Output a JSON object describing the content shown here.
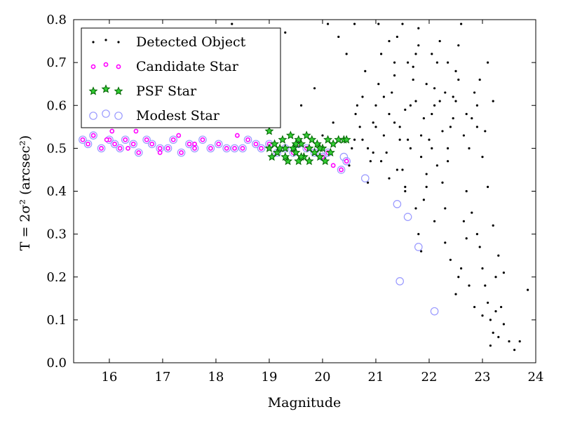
{
  "chart_data": {
    "type": "scatter",
    "xlabel": "Magnitude",
    "ylabel": "T = 2σ² (arcsec²)",
    "xlim": [
      15.33,
      24.0
    ],
    "ylim": [
      0.0,
      0.8
    ],
    "xticks": [
      "16",
      "17",
      "18",
      "19",
      "20",
      "21",
      "22",
      "23",
      "24"
    ],
    "yticks": [
      "0.0",
      "0.1",
      "0.2",
      "0.3",
      "0.4",
      "0.5",
      "0.6",
      "0.7",
      "0.8"
    ],
    "legend_position": "top-left",
    "colors": {
      "detected": "#000000",
      "candidate": "#ff00ff",
      "psf_fill": "#33cc33",
      "psf_edge": "#006400",
      "modest": "#9999ff"
    },
    "series": [
      {
        "name": "Detected Object",
        "marker": "dot",
        "points": [
          [
            20.5,
            0.46
          ],
          [
            20.55,
            0.5
          ],
          [
            20.6,
            0.52
          ],
          [
            20.62,
            0.58
          ],
          [
            20.7,
            0.55
          ],
          [
            20.75,
            0.62
          ],
          [
            20.8,
            0.68
          ],
          [
            20.85,
            0.5
          ],
          [
            20.9,
            0.47
          ],
          [
            20.95,
            0.56
          ],
          [
            21.0,
            0.6
          ],
          [
            21.05,
            0.65
          ],
          [
            21.1,
            0.72
          ],
          [
            21.15,
            0.53
          ],
          [
            21.2,
            0.49
          ],
          [
            21.25,
            0.58
          ],
          [
            21.3,
            0.63
          ],
          [
            21.35,
            0.7
          ],
          [
            21.4,
            0.76
          ],
          [
            21.45,
            0.55
          ],
          [
            21.5,
            0.45
          ],
          [
            21.55,
            0.41
          ],
          [
            21.6,
            0.52
          ],
          [
            21.65,
            0.6
          ],
          [
            21.7,
            0.66
          ],
          [
            21.75,
            0.72
          ],
          [
            21.8,
            0.78
          ],
          [
            21.85,
            0.48
          ],
          [
            21.9,
            0.38
          ],
          [
            21.95,
            0.44
          ],
          [
            22.0,
            0.52
          ],
          [
            22.05,
            0.58
          ],
          [
            22.1,
            0.64
          ],
          [
            22.15,
            0.7
          ],
          [
            22.2,
            0.75
          ],
          [
            22.25,
            0.42
          ],
          [
            22.3,
            0.36
          ],
          [
            22.35,
            0.47
          ],
          [
            22.4,
            0.55
          ],
          [
            22.45,
            0.62
          ],
          [
            22.5,
            0.68
          ],
          [
            22.55,
            0.74
          ],
          [
            22.6,
            0.79
          ],
          [
            22.65,
            0.33
          ],
          [
            22.7,
            0.4
          ],
          [
            22.75,
            0.5
          ],
          [
            22.8,
            0.57
          ],
          [
            22.85,
            0.63
          ],
          [
            22.9,
            0.3
          ],
          [
            22.95,
            0.27
          ],
          [
            23.0,
            0.22
          ],
          [
            23.05,
            0.18
          ],
          [
            23.1,
            0.14
          ],
          [
            23.15,
            0.1
          ],
          [
            23.2,
            0.07
          ],
          [
            23.25,
            0.2
          ],
          [
            23.3,
            0.25
          ],
          [
            23.35,
            0.13
          ],
          [
            23.4,
            0.09
          ],
          [
            23.5,
            0.05
          ],
          [
            23.6,
            0.03
          ],
          [
            23.7,
            0.05
          ],
          [
            23.85,
            0.17
          ],
          [
            23.2,
            0.32
          ],
          [
            23.1,
            0.41
          ],
          [
            23.0,
            0.48
          ],
          [
            22.9,
            0.55
          ],
          [
            22.8,
            0.35
          ],
          [
            22.7,
            0.29
          ],
          [
            22.6,
            0.22
          ],
          [
            22.5,
            0.16
          ],
          [
            23.1,
            0.7
          ],
          [
            23.2,
            0.61
          ],
          [
            22.95,
            0.66
          ],
          [
            20.1,
            0.79
          ],
          [
            20.3,
            0.76
          ],
          [
            20.45,
            0.72
          ],
          [
            19.85,
            0.64
          ],
          [
            19.6,
            0.6
          ],
          [
            20.2,
            0.56
          ],
          [
            20.0,
            0.53
          ],
          [
            18.3,
            0.79
          ],
          [
            18.85,
            0.72
          ],
          [
            19.3,
            0.77
          ],
          [
            20.6,
            0.79
          ],
          [
            21.05,
            0.79
          ],
          [
            21.5,
            0.79
          ],
          [
            21.25,
            0.75
          ],
          [
            21.7,
            0.69
          ],
          [
            21.95,
            0.65
          ],
          [
            22.2,
            0.61
          ],
          [
            22.45,
            0.57
          ],
          [
            22.65,
            0.53
          ],
          [
            22.15,
            0.46
          ],
          [
            21.95,
            0.41
          ],
          [
            21.75,
            0.36
          ],
          [
            21.55,
            0.4
          ],
          [
            21.4,
            0.45
          ],
          [
            21.25,
            0.43
          ],
          [
            21.1,
            0.47
          ],
          [
            20.95,
            0.49
          ],
          [
            20.85,
            0.42
          ],
          [
            21.8,
            0.3
          ],
          [
            21.85,
            0.26
          ],
          [
            22.1,
            0.33
          ],
          [
            22.3,
            0.28
          ],
          [
            22.4,
            0.24
          ],
          [
            22.55,
            0.2
          ],
          [
            22.75,
            0.18
          ],
          [
            22.85,
            0.13
          ],
          [
            23.0,
            0.11
          ],
          [
            23.15,
            0.04
          ],
          [
            23.3,
            0.06
          ],
          [
            22.35,
            0.5
          ],
          [
            22.25,
            0.54
          ],
          [
            22.05,
            0.5
          ],
          [
            21.85,
            0.53
          ],
          [
            21.65,
            0.5
          ],
          [
            21.45,
            0.52
          ],
          [
            21.35,
            0.56
          ],
          [
            21.55,
            0.59
          ],
          [
            21.75,
            0.61
          ],
          [
            21.9,
            0.57
          ],
          [
            22.1,
            0.6
          ],
          [
            22.3,
            0.63
          ],
          [
            22.5,
            0.61
          ],
          [
            22.7,
            0.58
          ],
          [
            22.9,
            0.6
          ],
          [
            23.05,
            0.54
          ],
          [
            22.55,
            0.66
          ],
          [
            22.35,
            0.7
          ],
          [
            22.05,
            0.72
          ],
          [
            21.8,
            0.74
          ],
          [
            21.6,
            0.7
          ],
          [
            21.35,
            0.67
          ],
          [
            21.15,
            0.62
          ],
          [
            21.0,
            0.55
          ],
          [
            20.65,
            0.6
          ],
          [
            20.75,
            0.52
          ],
          [
            23.25,
            0.12
          ],
          [
            23.4,
            0.21
          ]
        ]
      },
      {
        "name": "Candidate Star",
        "marker": "circle-small",
        "points": [
          [
            15.5,
            0.52
          ],
          [
            15.6,
            0.51
          ],
          [
            15.7,
            0.53
          ],
          [
            15.85,
            0.5
          ],
          [
            16.0,
            0.52
          ],
          [
            16.1,
            0.51
          ],
          [
            16.2,
            0.5
          ],
          [
            16.3,
            0.52
          ],
          [
            16.45,
            0.51
          ],
          [
            16.55,
            0.49
          ],
          [
            16.7,
            0.52
          ],
          [
            16.8,
            0.51
          ],
          [
            16.95,
            0.5
          ],
          [
            17.1,
            0.5
          ],
          [
            17.2,
            0.52
          ],
          [
            17.35,
            0.49
          ],
          [
            17.5,
            0.51
          ],
          [
            17.6,
            0.5
          ],
          [
            17.75,
            0.52
          ],
          [
            17.9,
            0.5
          ],
          [
            18.05,
            0.51
          ],
          [
            18.2,
            0.5
          ],
          [
            18.35,
            0.5
          ],
          [
            18.5,
            0.5
          ],
          [
            18.6,
            0.52
          ],
          [
            18.75,
            0.51
          ],
          [
            18.85,
            0.5
          ],
          [
            19.0,
            0.51
          ],
          [
            19.15,
            0.49
          ],
          [
            19.3,
            0.5
          ],
          [
            19.45,
            0.49
          ],
          [
            19.55,
            0.51
          ],
          [
            19.7,
            0.5
          ],
          [
            19.85,
            0.49
          ],
          [
            20.0,
            0.48
          ],
          [
            20.1,
            0.49
          ],
          [
            20.2,
            0.46
          ],
          [
            20.35,
            0.45
          ],
          [
            20.45,
            0.47
          ],
          [
            16.05,
            0.54
          ],
          [
            16.5,
            0.54
          ],
          [
            17.3,
            0.53
          ],
          [
            18.4,
            0.53
          ],
          [
            15.95,
            0.52
          ],
          [
            16.35,
            0.5
          ],
          [
            16.95,
            0.49
          ],
          [
            17.6,
            0.51
          ]
        ]
      },
      {
        "name": "PSF Star",
        "marker": "star",
        "points": [
          [
            19.0,
            0.5
          ],
          [
            19.1,
            0.51
          ],
          [
            19.15,
            0.49
          ],
          [
            19.25,
            0.52
          ],
          [
            19.3,
            0.5
          ],
          [
            19.4,
            0.53
          ],
          [
            19.45,
            0.5
          ],
          [
            19.5,
            0.49
          ],
          [
            19.55,
            0.52
          ],
          [
            19.6,
            0.51
          ],
          [
            19.65,
            0.48
          ],
          [
            19.7,
            0.53
          ],
          [
            19.75,
            0.5
          ],
          [
            19.8,
            0.52
          ],
          [
            19.85,
            0.49
          ],
          [
            19.9,
            0.51
          ],
          [
            19.95,
            0.48
          ],
          [
            20.0,
            0.5
          ],
          [
            20.05,
            0.47
          ],
          [
            20.1,
            0.52
          ],
          [
            20.2,
            0.51
          ],
          [
            20.3,
            0.52
          ],
          [
            20.4,
            0.52
          ],
          [
            20.45,
            0.52
          ],
          [
            19.0,
            0.54
          ],
          [
            19.35,
            0.47
          ],
          [
            19.6,
            0.48
          ],
          [
            19.75,
            0.47
          ],
          [
            19.2,
            0.5
          ],
          [
            19.5,
            0.51
          ],
          [
            20.15,
            0.49
          ],
          [
            19.95,
            0.5
          ],
          [
            19.55,
            0.47
          ],
          [
            19.3,
            0.48
          ],
          [
            19.05,
            0.48
          ]
        ]
      },
      {
        "name": "Modest Star",
        "marker": "circle-open",
        "points": [
          [
            15.5,
            0.52
          ],
          [
            15.6,
            0.51
          ],
          [
            15.7,
            0.53
          ],
          [
            15.85,
            0.5
          ],
          [
            16.0,
            0.52
          ],
          [
            16.1,
            0.51
          ],
          [
            16.2,
            0.5
          ],
          [
            16.3,
            0.52
          ],
          [
            16.45,
            0.51
          ],
          [
            16.55,
            0.49
          ],
          [
            16.7,
            0.52
          ],
          [
            16.8,
            0.51
          ],
          [
            16.95,
            0.5
          ],
          [
            17.1,
            0.5
          ],
          [
            17.2,
            0.52
          ],
          [
            17.35,
            0.49
          ],
          [
            17.5,
            0.51
          ],
          [
            17.6,
            0.5
          ],
          [
            17.75,
            0.52
          ],
          [
            17.9,
            0.5
          ],
          [
            18.05,
            0.51
          ],
          [
            18.2,
            0.5
          ],
          [
            18.35,
            0.5
          ],
          [
            18.5,
            0.5
          ],
          [
            18.6,
            0.52
          ],
          [
            18.75,
            0.51
          ],
          [
            18.85,
            0.5
          ],
          [
            19.0,
            0.51
          ],
          [
            19.15,
            0.49
          ],
          [
            19.3,
            0.5
          ],
          [
            19.45,
            0.49
          ],
          [
            19.55,
            0.51
          ],
          [
            19.7,
            0.5
          ],
          [
            19.85,
            0.49
          ],
          [
            20.0,
            0.48
          ],
          [
            20.1,
            0.49
          ],
          [
            20.35,
            0.45
          ],
          [
            20.45,
            0.47
          ],
          [
            20.4,
            0.48
          ],
          [
            20.8,
            0.43
          ],
          [
            21.4,
            0.37
          ],
          [
            21.6,
            0.34
          ],
          [
            21.8,
            0.27
          ],
          [
            21.45,
            0.19
          ],
          [
            22.1,
            0.12
          ]
        ]
      }
    ]
  }
}
